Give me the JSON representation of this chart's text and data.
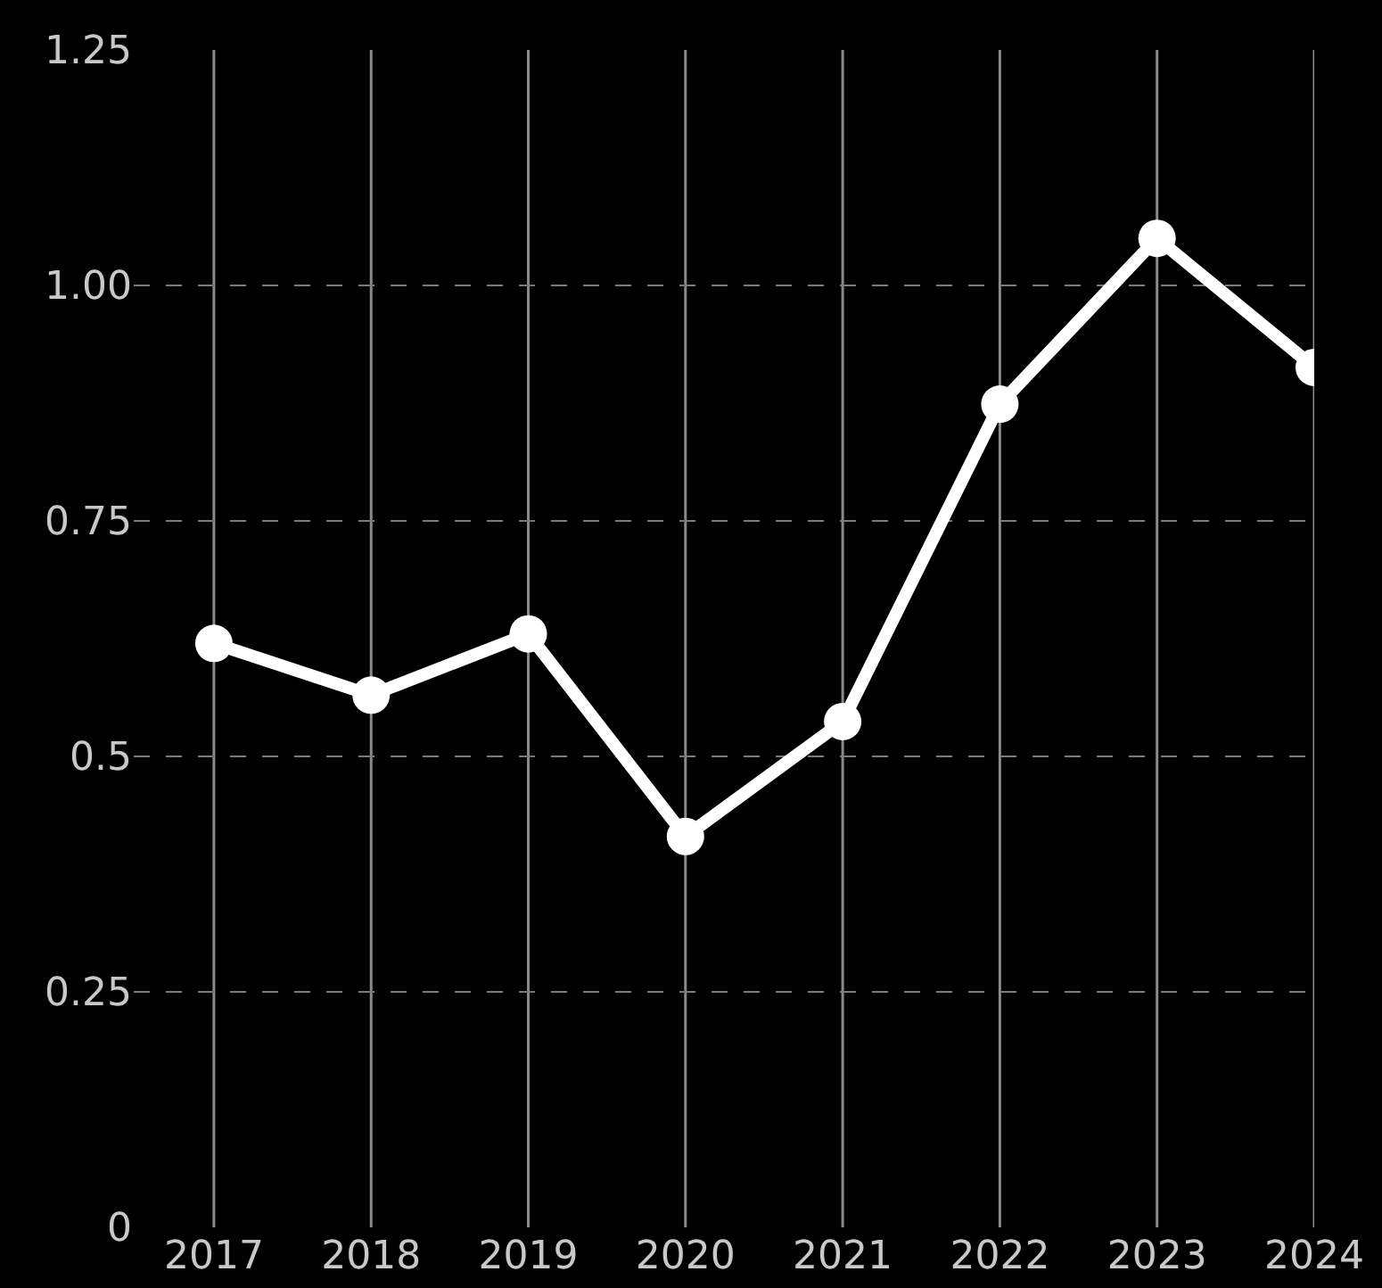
{
  "chart_data": {
    "type": "line",
    "categories": [
      "2017",
      "2018",
      "2019",
      "2020",
      "2021",
      "2022",
      "2023",
      "2024"
    ],
    "series": [
      {
        "color": "#ffffff",
        "values": [
          0.62,
          0.565,
          0.63,
          0.415,
          0.537,
          0.874,
          1.05,
          0.913
        ]
      }
    ],
    "ylim": [
      0,
      1.25
    ],
    "yticks": [
      0,
      0.25,
      0.5,
      0.75,
      {
        "value": 1,
        "label": "1.00"
      },
      1.25
    ],
    "grid": true,
    "marker": "circle",
    "line_style": "solid"
  }
}
